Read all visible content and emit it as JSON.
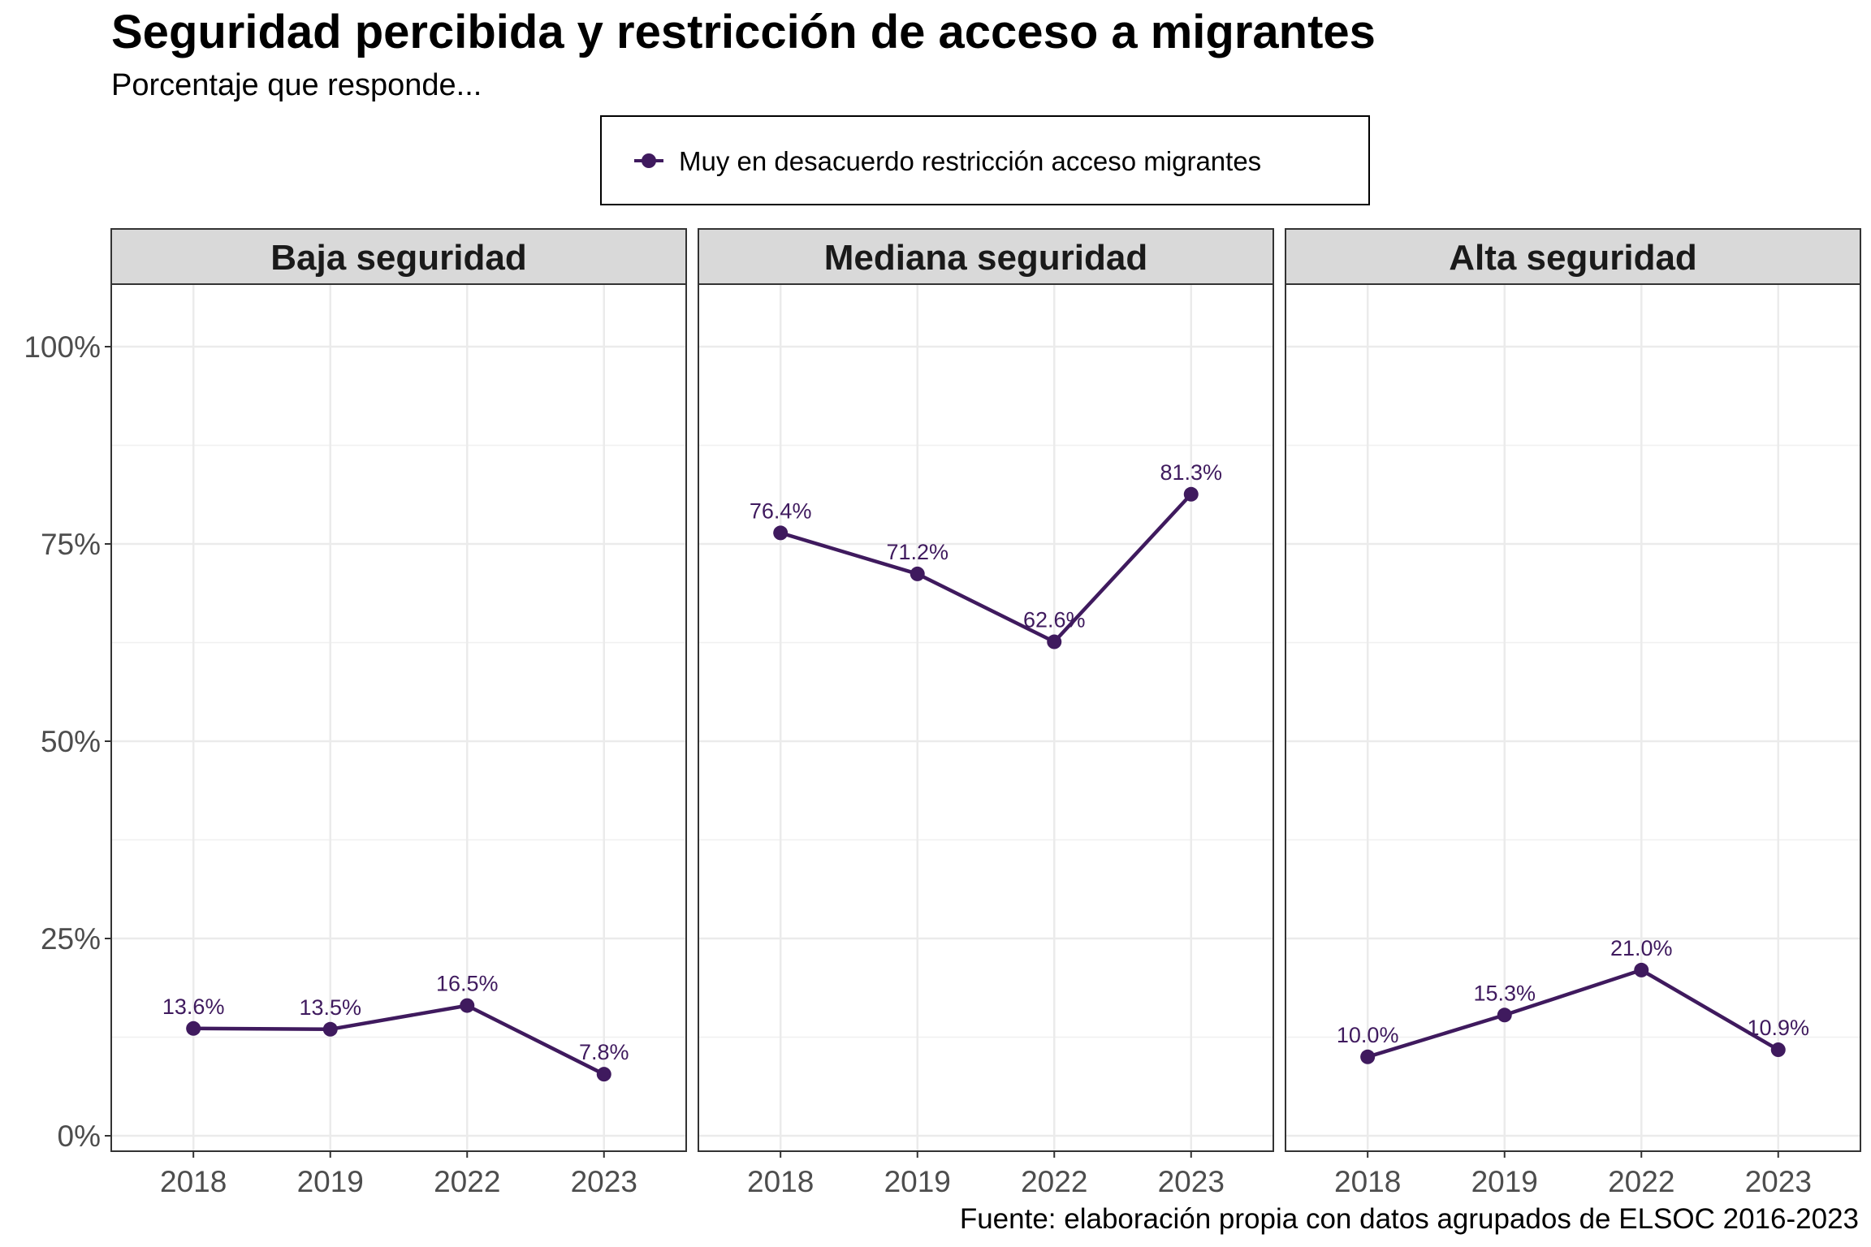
{
  "chart_data": {
    "type": "line",
    "title": "Seguridad percibida y restricción de acceso a migrantes",
    "subtitle": "Porcentaje que responde...",
    "caption": "Fuente: elaboración propia con datos agrupados de ELSOC 2016-2023",
    "xlabel": "",
    "ylabel": "",
    "ylim": [
      0,
      100
    ],
    "y_ticks": [
      "0%",
      "25%",
      "50%",
      "75%",
      "100%"
    ],
    "categories": [
      "2018",
      "2019",
      "2022",
      "2023"
    ],
    "legend": {
      "position": "top",
      "entries": [
        "Muy en desacuerdo restricción acceso migrantes"
      ]
    },
    "grid": true,
    "color": "#3f1a5e",
    "panels": [
      {
        "name": "Baja seguridad",
        "series": [
          {
            "name": "Muy en desacuerdo restricción acceso migrantes",
            "values": [
              13.6,
              13.5,
              16.5,
              7.8
            ],
            "labels": [
              "13.6%",
              "13.5%",
              "16.5%",
              "7.8%"
            ]
          }
        ]
      },
      {
        "name": "Mediana seguridad",
        "series": [
          {
            "name": "Muy en desacuerdo restricción acceso migrantes",
            "values": [
              76.4,
              71.2,
              62.6,
              81.3
            ],
            "labels": [
              "76.4%",
              "71.2%",
              "62.6%",
              "81.3%"
            ]
          }
        ]
      },
      {
        "name": "Alta seguridad",
        "series": [
          {
            "name": "Muy en desacuerdo restricción acceso migrantes",
            "values": [
              10.0,
              15.3,
              21.0,
              10.9
            ],
            "labels": [
              "10.0%",
              "15.3%",
              "21.0%",
              "10.9%"
            ]
          }
        ]
      }
    ]
  }
}
